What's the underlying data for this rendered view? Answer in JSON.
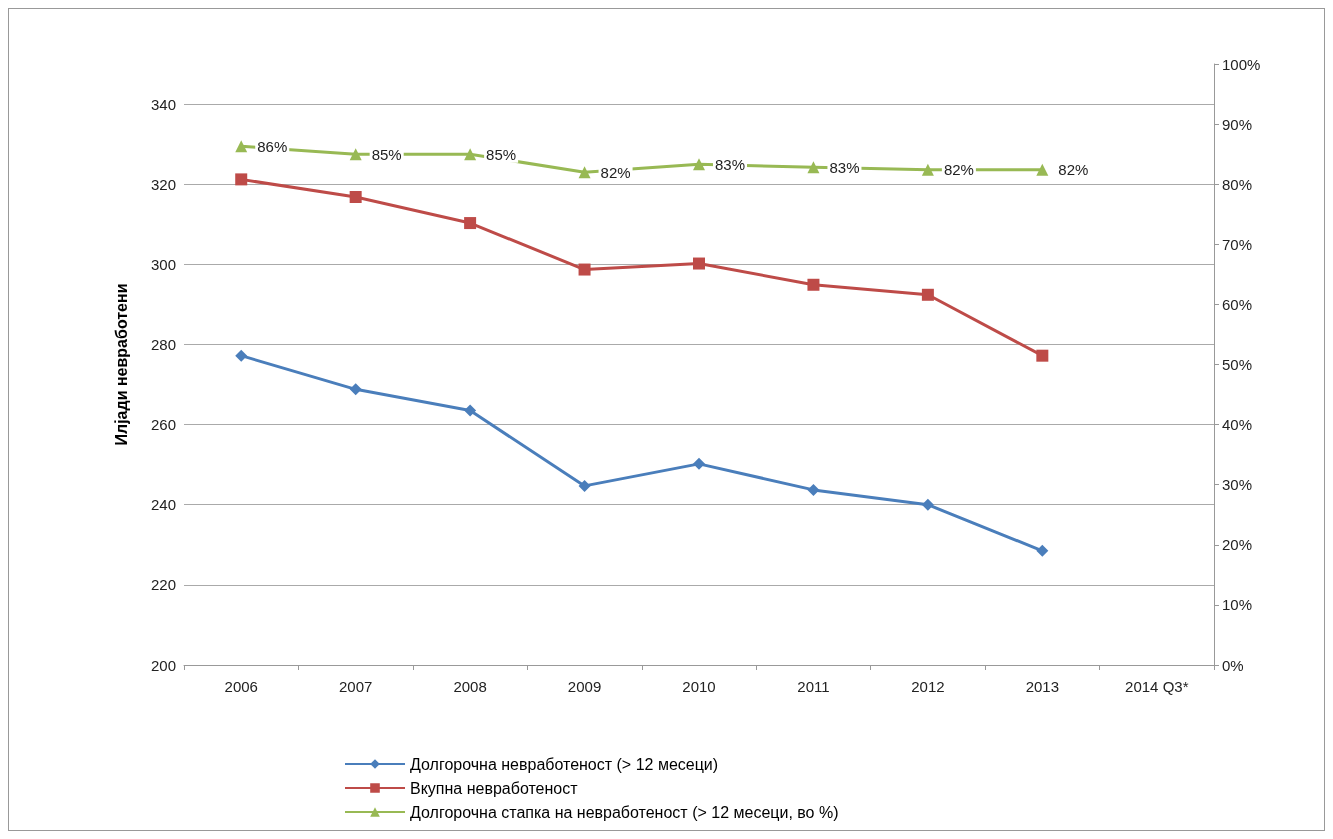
{
  "chart_data": {
    "type": "line",
    "ylabel": "Илјади невработени",
    "categories": [
      "2006",
      "2007",
      "2008",
      "2009",
      "2010",
      "2011",
      "2012",
      "2013",
      "2014 Q3*"
    ],
    "ylim": [
      200,
      350
    ],
    "yticks": [
      200,
      220,
      240,
      260,
      280,
      300,
      320,
      340
    ],
    "y2lim": [
      0,
      100
    ],
    "y2ticks": [
      {
        "value": 0,
        "label": "0%"
      },
      {
        "value": 10,
        "label": "10%"
      },
      {
        "value": 20,
        "label": "20%"
      },
      {
        "value": 30,
        "label": "30%"
      },
      {
        "value": 40,
        "label": "40%"
      },
      {
        "value": 50,
        "label": "50%"
      },
      {
        "value": 60,
        "label": "60%"
      },
      {
        "value": 70,
        "label": "70%"
      },
      {
        "value": 80,
        "label": "80%"
      },
      {
        "value": 90,
        "label": "90%"
      },
      {
        "value": 100,
        "label": "100%"
      }
    ],
    "grid": "y",
    "legend": "bottom",
    "series": [
      {
        "name": "Долгорочна невработеност (> 12 месеци)",
        "color": "#4a7ebb",
        "marker": "diamond",
        "values": [
          277.2,
          268.8,
          263.5,
          244.7,
          250.2,
          243.7,
          240,
          228.5,
          null
        ]
      },
      {
        "name": "Вкупна невработеност",
        "color": "#be4b48",
        "marker": "square",
        "values": [
          321.2,
          316.8,
          310.3,
          298.7,
          300.2,
          294.9,
          292.4,
          277.2,
          null
        ]
      },
      {
        "name": "Долгорочна стапка на невработеност (> 12 месеци, во %)",
        "color": "#98b954",
        "marker": "triangle",
        "axis": "y2",
        "values": [
          86.3,
          85,
          85,
          82,
          83.3,
          82.8,
          82.4,
          82.4,
          null
        ],
        "value_labels": [
          "86%",
          "85%",
          "85%",
          "82%",
          "83%",
          "83%",
          "82%",
          "82%",
          null
        ]
      }
    ]
  }
}
